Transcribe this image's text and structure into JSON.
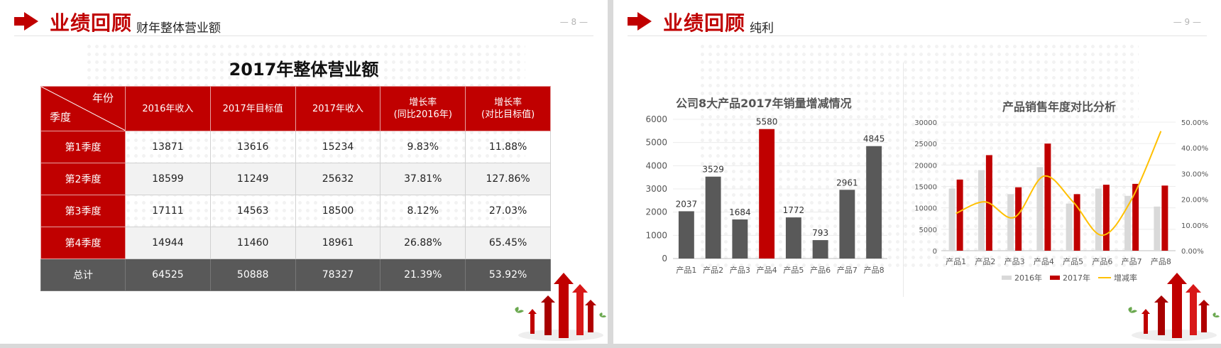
{
  "slides": {
    "left": {
      "header": {
        "title": "业绩回顾",
        "subtitle": "财年整体营业额",
        "page": "— 8 —"
      },
      "table": {
        "title": "2017年整体营业额",
        "corner_top": "年份",
        "corner_bottom": "季度",
        "headers": [
          "2016年收入",
          "2017年目标值",
          "2017年收入",
          "增长率\n(同比2016年)",
          "增长率\n(对比目标值)"
        ],
        "rows": [
          [
            "第1季度",
            "13871",
            "13616",
            "15234",
            "9.83%",
            "11.88%"
          ],
          [
            "第2季度",
            "18599",
            "11249",
            "25632",
            "37.81%",
            "127.86%"
          ],
          [
            "第3季度",
            "17111",
            "14563",
            "18500",
            "8.12%",
            "27.03%"
          ],
          [
            "第4季度",
            "14944",
            "11460",
            "18961",
            "26.88%",
            "65.45%"
          ]
        ],
        "total": [
          "总计",
          "64525",
          "50888",
          "78327",
          "21.39%",
          "53.92%"
        ]
      }
    },
    "right": {
      "header": {
        "title": "业绩回顾",
        "subtitle": "纯利",
        "page": "— 9 —"
      }
    }
  },
  "chart_data": [
    {
      "type": "bar",
      "title": "公司8大产品2017年销量增减情况",
      "categories": [
        "产品1",
        "产品2",
        "产品3",
        "产品4",
        "产品5",
        "产品6",
        "产品7",
        "产品8"
      ],
      "values": [
        2037,
        3529,
        1684,
        5580,
        1772,
        793,
        2961,
        4845
      ],
      "highlight_index": 3,
      "ylim": [
        0,
        6000
      ],
      "yticks": [
        "0",
        "1000",
        "2000",
        "3000",
        "4000",
        "5000",
        "6000"
      ],
      "colors": {
        "bar": "#595959",
        "highlight": "#c00000"
      }
    },
    {
      "type": "bar",
      "title": "产品销售年度对比分析",
      "categories": [
        "产品1",
        "产品2",
        "产品3",
        "产品4",
        "产品5",
        "产品6",
        "产品7",
        "产品8"
      ],
      "series": [
        {
          "name": "2016年",
          "values": [
            14500,
            18800,
            13200,
            19500,
            11000,
            14500,
            12800,
            10300
          ],
          "color": "#d9d9d9"
        },
        {
          "name": "2017年",
          "values": [
            16600,
            22300,
            14800,
            25000,
            13200,
            15400,
            15600,
            15200
          ],
          "color": "#c00000"
        },
        {
          "name": "增减率",
          "type": "line",
          "axis": "right",
          "values": [
            0.145,
            0.19,
            0.13,
            0.29,
            0.19,
            0.06,
            0.2,
            0.465
          ],
          "color": "#ffc000"
        }
      ],
      "ylim": [
        0,
        30000
      ],
      "yticks": [
        "0",
        "5000",
        "10000",
        "15000",
        "20000",
        "25000",
        "30000"
      ],
      "y2lim": [
        0,
        0.5
      ],
      "y2ticks": [
        "0.00%",
        "10.00%",
        "20.00%",
        "30.00%",
        "40.00%",
        "50.00%"
      ],
      "legend": "bottom"
    }
  ]
}
